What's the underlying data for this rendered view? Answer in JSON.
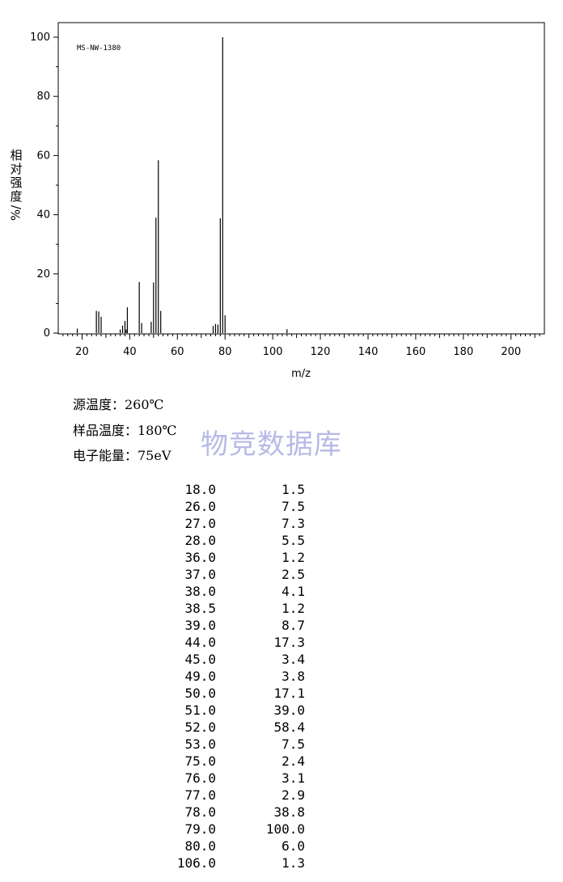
{
  "chart_data": {
    "type": "bar",
    "sample_id": "MS-NW-1380",
    "xlabel": "m/z",
    "ylabel_chars": [
      "相",
      "对",
      "强",
      "度"
    ],
    "ylabel_unit": "%/",
    "xlim": [
      10,
      214
    ],
    "ylim": [
      0,
      100
    ],
    "xticks": [
      20,
      40,
      60,
      80,
      100,
      120,
      140,
      160,
      180,
      200
    ],
    "yticks": [
      0,
      20,
      40,
      60,
      80,
      100
    ],
    "grid": false,
    "peaks": [
      {
        "mz": 18.0,
        "intensity": 1.5
      },
      {
        "mz": 26.0,
        "intensity": 7.5
      },
      {
        "mz": 27.0,
        "intensity": 7.3
      },
      {
        "mz": 28.0,
        "intensity": 5.5
      },
      {
        "mz": 36.0,
        "intensity": 1.2
      },
      {
        "mz": 37.0,
        "intensity": 2.5
      },
      {
        "mz": 38.0,
        "intensity": 4.1
      },
      {
        "mz": 38.5,
        "intensity": 1.2
      },
      {
        "mz": 39.0,
        "intensity": 8.7
      },
      {
        "mz": 44.0,
        "intensity": 17.3
      },
      {
        "mz": 45.0,
        "intensity": 3.4
      },
      {
        "mz": 49.0,
        "intensity": 3.8
      },
      {
        "mz": 50.0,
        "intensity": 17.1
      },
      {
        "mz": 51.0,
        "intensity": 39.0
      },
      {
        "mz": 52.0,
        "intensity": 58.4
      },
      {
        "mz": 53.0,
        "intensity": 7.5
      },
      {
        "mz": 75.0,
        "intensity": 2.4
      },
      {
        "mz": 76.0,
        "intensity": 3.1
      },
      {
        "mz": 77.0,
        "intensity": 2.9
      },
      {
        "mz": 78.0,
        "intensity": 38.8
      },
      {
        "mz": 79.0,
        "intensity": 100.0
      },
      {
        "mz": 80.0,
        "intensity": 6.0
      },
      {
        "mz": 106.0,
        "intensity": 1.3
      }
    ]
  },
  "conditions": {
    "source_temp": "源温度：260℃",
    "sample_temp": "样品温度：180℃",
    "electron_energy": "电子能量：75eV"
  },
  "watermark": "物竞数据库",
  "peak_table": [
    {
      "mz": "18.0",
      "intensity": "1.5"
    },
    {
      "mz": "26.0",
      "intensity": "7.5"
    },
    {
      "mz": "27.0",
      "intensity": "7.3"
    },
    {
      "mz": "28.0",
      "intensity": "5.5"
    },
    {
      "mz": "36.0",
      "intensity": "1.2"
    },
    {
      "mz": "37.0",
      "intensity": "2.5"
    },
    {
      "mz": "38.0",
      "intensity": "4.1"
    },
    {
      "mz": "38.5",
      "intensity": "1.2"
    },
    {
      "mz": "39.0",
      "intensity": "8.7"
    },
    {
      "mz": "44.0",
      "intensity": "17.3"
    },
    {
      "mz": "45.0",
      "intensity": "3.4"
    },
    {
      "mz": "49.0",
      "intensity": "3.8"
    },
    {
      "mz": "50.0",
      "intensity": "17.1"
    },
    {
      "mz": "51.0",
      "intensity": "39.0"
    },
    {
      "mz": "52.0",
      "intensity": "58.4"
    },
    {
      "mz": "53.0",
      "intensity": "7.5"
    },
    {
      "mz": "75.0",
      "intensity": "2.4"
    },
    {
      "mz": "76.0",
      "intensity": "3.1"
    },
    {
      "mz": "77.0",
      "intensity": "2.9"
    },
    {
      "mz": "78.0",
      "intensity": "38.8"
    },
    {
      "mz": "79.0",
      "intensity": "100.0"
    },
    {
      "mz": "80.0",
      "intensity": "6.0"
    },
    {
      "mz": "106.0",
      "intensity": "1.3"
    }
  ]
}
